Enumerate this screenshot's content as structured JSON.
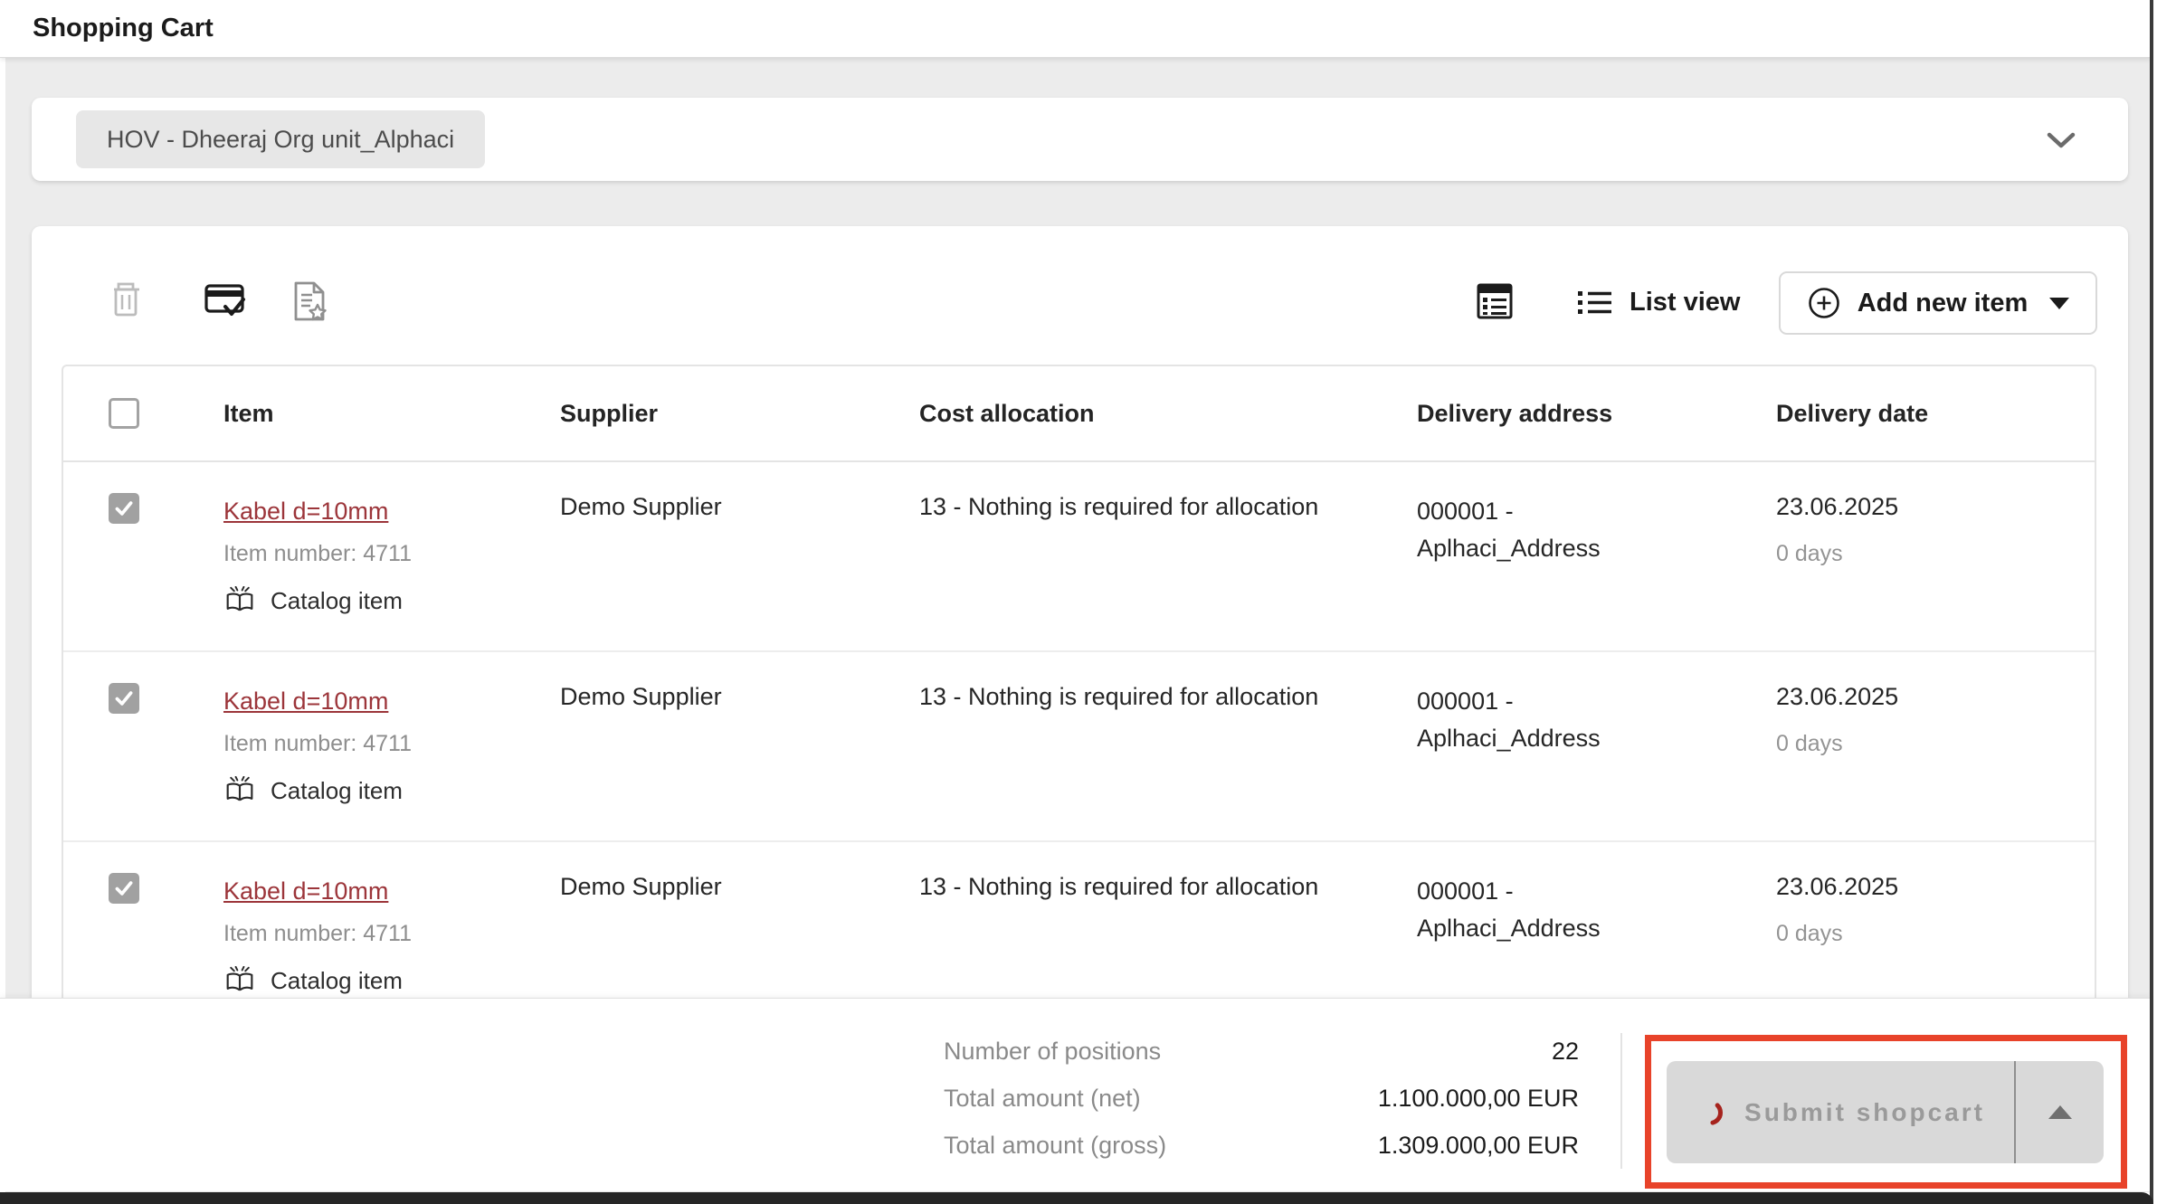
{
  "page": {
    "title": "Shopping Cart"
  },
  "org_selector": {
    "value": "HOV - Dheeraj Org unit_Alphaci"
  },
  "toolbar": {
    "icons": [
      "delete-icon",
      "card-check-icon",
      "document-star-icon"
    ],
    "table_view_icon": "table-view-icon",
    "list_view_label": "List view",
    "add_new_item_label": "Add new item"
  },
  "table": {
    "columns": [
      "Item",
      "Supplier",
      "Cost allocation",
      "Delivery address",
      "Delivery date"
    ],
    "rows": [
      {
        "checked": true,
        "name": "Kabel d=10mm",
        "item_number": "Item number: 4711",
        "badge": "Catalog item",
        "supplier": "Demo Supplier",
        "cost_allocation": "13 - Nothing is required for allocation",
        "delivery_address_line1": "000001 -",
        "delivery_address_line2": "Aplhaci_Address",
        "delivery_date": "23.06.2025",
        "delivery_days": "0 days"
      },
      {
        "checked": true,
        "name": "Kabel d=10mm",
        "item_number": "Item number: 4711",
        "badge": "Catalog item",
        "supplier": "Demo Supplier",
        "cost_allocation": "13 - Nothing is required for allocation",
        "delivery_address_line1": "000001 -",
        "delivery_address_line2": "Aplhaci_Address",
        "delivery_date": "23.06.2025",
        "delivery_days": "0 days"
      },
      {
        "checked": true,
        "name": "Kabel d=10mm",
        "item_number": "Item number: 4711",
        "badge": "Catalog item",
        "supplier": "Demo Supplier",
        "cost_allocation": "13 - Nothing is required for allocation",
        "delivery_address_line1": "000001 -",
        "delivery_address_line2": "Aplhaci_Address",
        "delivery_date": "23.06.2025",
        "delivery_days": "0 days"
      }
    ]
  },
  "summary": {
    "rows": [
      {
        "label": "Number of positions",
        "value": "22"
      },
      {
        "label": "Total amount (net)",
        "value": "1.100.000,00 EUR"
      },
      {
        "label": "Total amount (gross)",
        "value": "1.309.000,00 EUR"
      }
    ],
    "submit_label": "Submit shopcart"
  },
  "colors": {
    "link_red": "#9c353a",
    "spinner_red": "#a6231d",
    "annotation_red": "#e8432a",
    "background_gray": "#ececec",
    "disabled_button_gray": "#d9d9d9"
  }
}
